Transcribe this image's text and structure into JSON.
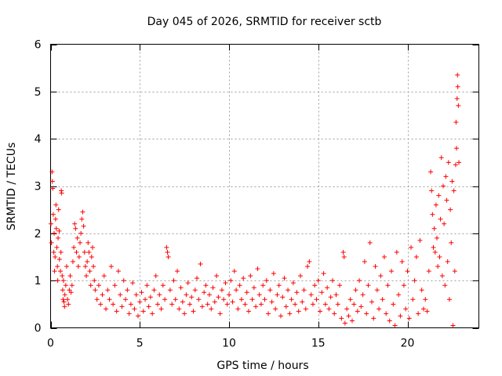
{
  "chart_data": {
    "type": "scatter",
    "title": "Day 045 of 2026, SRMTID for receiver sctb",
    "xlabel": "GPS time / hours",
    "ylabel": "SRMTID / TECUs",
    "xlim": [
      0,
      24
    ],
    "ylim": [
      0,
      6
    ],
    "x_ticks": [
      0,
      5,
      10,
      15,
      20
    ],
    "y_ticks": [
      0,
      1,
      2,
      3,
      4,
      5,
      6
    ],
    "x_tick_labels": [
      "0",
      "5",
      "10",
      "15",
      "20"
    ],
    "y_tick_labels": [
      "0",
      "1",
      "2",
      "3",
      "4",
      "5",
      "6"
    ],
    "grid": true,
    "marker": "+",
    "colors": {
      "series": "#ff0000",
      "grid": "#a0a0a0",
      "axes": "#000000"
    },
    "series": [
      {
        "name": "SRMTID",
        "points": [
          [
            0.02,
            2.2
          ],
          [
            0.05,
            1.8
          ],
          [
            0.08,
            3.3
          ],
          [
            0.1,
            3.1
          ],
          [
            0.12,
            2.95
          ],
          [
            0.15,
            2.4
          ],
          [
            0.18,
            1.6
          ],
          [
            0.2,
            2.0
          ],
          [
            0.22,
            1.2
          ],
          [
            0.25,
            1.5
          ],
          [
            0.28,
            2.3
          ],
          [
            0.3,
            2.6
          ],
          [
            0.32,
            2.1
          ],
          [
            0.35,
            1.7
          ],
          [
            0.38,
            1.3
          ],
          [
            0.4,
            1.0
          ],
          [
            0.42,
            1.9
          ],
          [
            0.45,
            2.5
          ],
          [
            0.48,
            2.05
          ],
          [
            0.5,
            1.45
          ],
          [
            0.55,
            1.2
          ],
          [
            0.58,
            1.6
          ],
          [
            0.6,
            2.9
          ],
          [
            0.62,
            2.85
          ],
          [
            0.65,
            1.1
          ],
          [
            0.68,
            0.8
          ],
          [
            0.7,
            0.6
          ],
          [
            0.72,
            1.0
          ],
          [
            0.75,
            0.55
          ],
          [
            0.78,
            0.45
          ],
          [
            0.8,
            0.7
          ],
          [
            0.85,
            0.9
          ],
          [
            0.9,
            1.3
          ],
          [
            0.95,
            0.6
          ],
          [
            1.0,
            0.5
          ],
          [
            1.05,
            0.8
          ],
          [
            1.1,
            1.1
          ],
          [
            1.15,
            0.75
          ],
          [
            1.2,
            0.9
          ],
          [
            1.25,
            1.4
          ],
          [
            1.3,
            1.7
          ],
          [
            1.35,
            2.2
          ],
          [
            1.4,
            2.1
          ],
          [
            1.45,
            1.6
          ],
          [
            1.5,
            1.9
          ],
          [
            1.55,
            1.3
          ],
          [
            1.6,
            1.5
          ],
          [
            1.65,
            1.8
          ],
          [
            1.7,
            2.0
          ],
          [
            1.75,
            2.3
          ],
          [
            1.8,
            2.45
          ],
          [
            1.85,
            2.15
          ],
          [
            1.9,
            1.6
          ],
          [
            1.95,
            1.3
          ],
          [
            2.0,
            1.1
          ],
          [
            2.05,
            1.4
          ],
          [
            2.1,
            1.8
          ],
          [
            2.15,
            1.6
          ],
          [
            2.2,
            1.2
          ],
          [
            2.25,
            0.9
          ],
          [
            2.3,
            1.5
          ],
          [
            2.35,
            1.7
          ],
          [
            2.4,
            1.3
          ],
          [
            2.45,
            1.0
          ],
          [
            2.5,
            0.8
          ],
          [
            2.6,
            0.6
          ],
          [
            2.7,
            0.9
          ],
          [
            2.8,
            0.5
          ],
          [
            2.9,
            0.7
          ],
          [
            3.0,
            1.1
          ],
          [
            3.1,
            0.4
          ],
          [
            3.2,
            0.8
          ],
          [
            3.3,
            0.6
          ],
          [
            3.4,
            1.3
          ],
          [
            3.5,
            0.5
          ],
          [
            3.6,
            0.9
          ],
          [
            3.7,
            0.35
          ],
          [
            3.8,
            1.2
          ],
          [
            3.9,
            0.7
          ],
          [
            4.0,
            0.45
          ],
          [
            4.1,
            1.0
          ],
          [
            4.2,
            0.6
          ],
          [
            4.3,
            0.8
          ],
          [
            4.4,
            0.3
          ],
          [
            4.5,
            0.5
          ],
          [
            4.6,
            0.95
          ],
          [
            4.7,
            0.4
          ],
          [
            4.8,
            0.7
          ],
          [
            4.9,
            0.25
          ],
          [
            5.0,
            0.55
          ],
          [
            5.1,
            0.75
          ],
          [
            5.2,
            0.35
          ],
          [
            5.3,
            0.6
          ],
          [
            5.4,
            0.9
          ],
          [
            5.5,
            0.45
          ],
          [
            5.6,
            0.65
          ],
          [
            5.7,
            0.3
          ],
          [
            5.8,
            0.8
          ],
          [
            5.9,
            1.1
          ],
          [
            6.0,
            0.5
          ],
          [
            6.1,
            0.7
          ],
          [
            6.2,
            0.4
          ],
          [
            6.3,
            0.9
          ],
          [
            6.4,
            0.6
          ],
          [
            6.5,
            1.7
          ],
          [
            6.55,
            1.6
          ],
          [
            6.6,
            1.5
          ],
          [
            6.7,
            0.8
          ],
          [
            6.8,
            0.5
          ],
          [
            6.9,
            1.0
          ],
          [
            7.0,
            0.6
          ],
          [
            7.1,
            1.2
          ],
          [
            7.2,
            0.4
          ],
          [
            7.3,
            0.85
          ],
          [
            7.4,
            0.55
          ],
          [
            7.5,
            0.3
          ],
          [
            7.6,
            0.7
          ],
          [
            7.7,
            0.95
          ],
          [
            7.8,
            0.5
          ],
          [
            7.9,
            0.65
          ],
          [
            8.0,
            0.35
          ],
          [
            8.1,
            0.8
          ],
          [
            8.2,
            1.05
          ],
          [
            8.3,
            0.6
          ],
          [
            8.4,
            1.35
          ],
          [
            8.5,
            0.45
          ],
          [
            8.6,
            0.75
          ],
          [
            8.7,
            0.9
          ],
          [
            8.8,
            0.5
          ],
          [
            8.9,
            0.7
          ],
          [
            9.0,
            0.4
          ],
          [
            9.1,
            0.85
          ],
          [
            9.2,
            0.55
          ],
          [
            9.3,
            1.1
          ],
          [
            9.4,
            0.65
          ],
          [
            9.5,
            0.3
          ],
          [
            9.6,
            0.8
          ],
          [
            9.7,
            0.6
          ],
          [
            9.8,
            0.95
          ],
          [
            9.9,
            0.5
          ],
          [
            10.0,
            0.7
          ],
          [
            10.1,
            1.0
          ],
          [
            10.2,
            0.55
          ],
          [
            10.3,
            1.2
          ],
          [
            10.4,
            0.8
          ],
          [
            10.5,
            0.4
          ],
          [
            10.6,
            0.9
          ],
          [
            10.7,
            0.6
          ],
          [
            10.8,
            1.05
          ],
          [
            10.9,
            0.5
          ],
          [
            11.0,
            0.75
          ],
          [
            11.1,
            0.35
          ],
          [
            11.2,
            1.1
          ],
          [
            11.3,
            0.6
          ],
          [
            11.4,
            0.85
          ],
          [
            11.5,
            0.45
          ],
          [
            11.6,
            1.25
          ],
          [
            11.7,
            0.7
          ],
          [
            11.8,
            0.5
          ],
          [
            11.9,
            0.9
          ],
          [
            12.0,
            0.6
          ],
          [
            12.1,
            1.0
          ],
          [
            12.2,
            0.3
          ],
          [
            12.3,
            0.8
          ],
          [
            12.4,
            0.55
          ],
          [
            12.5,
            1.15
          ],
          [
            12.6,
            0.4
          ],
          [
            12.7,
            0.7
          ],
          [
            12.8,
            0.9
          ],
          [
            12.9,
            0.25
          ],
          [
            13.0,
            0.65
          ],
          [
            13.1,
            1.05
          ],
          [
            13.2,
            0.45
          ],
          [
            13.3,
            0.8
          ],
          [
            13.4,
            0.3
          ],
          [
            13.5,
            0.6
          ],
          [
            13.6,
            0.95
          ],
          [
            13.7,
            0.5
          ],
          [
            13.8,
            0.75
          ],
          [
            13.9,
            0.35
          ],
          [
            14.0,
            1.1
          ],
          [
            14.1,
            0.55
          ],
          [
            14.2,
            0.8
          ],
          [
            14.3,
            0.4
          ],
          [
            14.4,
            1.3
          ],
          [
            14.5,
            1.4
          ],
          [
            14.6,
            0.7
          ],
          [
            14.7,
            0.5
          ],
          [
            14.8,
            0.9
          ],
          [
            14.9,
            0.6
          ],
          [
            15.0,
            1.0
          ],
          [
            15.1,
            0.35
          ],
          [
            15.2,
            0.75
          ],
          [
            15.3,
            1.15
          ],
          [
            15.4,
            0.5
          ],
          [
            15.5,
            0.85
          ],
          [
            15.6,
            0.4
          ],
          [
            15.7,
            0.65
          ],
          [
            15.8,
            1.0
          ],
          [
            15.9,
            0.3
          ],
          [
            16.0,
            0.7
          ],
          [
            16.1,
            0.5
          ],
          [
            16.2,
            0.9
          ],
          [
            16.3,
            0.2
          ],
          [
            16.4,
            1.6
          ],
          [
            16.45,
            1.5
          ],
          [
            16.5,
            0.1
          ],
          [
            16.6,
            0.4
          ],
          [
            16.7,
            0.25
          ],
          [
            16.8,
            0.6
          ],
          [
            16.9,
            0.15
          ],
          [
            17.0,
            0.5
          ],
          [
            17.1,
            0.8
          ],
          [
            17.2,
            0.35
          ],
          [
            17.3,
            1.0
          ],
          [
            17.4,
            0.45
          ],
          [
            17.5,
            0.7
          ],
          [
            17.6,
            1.4
          ],
          [
            17.7,
            0.3
          ],
          [
            17.8,
            0.9
          ],
          [
            17.9,
            1.8
          ],
          [
            18.0,
            0.55
          ],
          [
            18.1,
            0.2
          ],
          [
            18.2,
            1.3
          ],
          [
            18.3,
            0.8
          ],
          [
            18.4,
            0.4
          ],
          [
            18.5,
            1.1
          ],
          [
            18.6,
            0.6
          ],
          [
            18.7,
            1.5
          ],
          [
            18.8,
            0.3
          ],
          [
            18.9,
            0.9
          ],
          [
            19.0,
            0.15
          ],
          [
            19.1,
            1.2
          ],
          [
            19.2,
            0.5
          ],
          [
            19.3,
            0.05
          ],
          [
            19.4,
            1.6
          ],
          [
            19.5,
            0.7
          ],
          [
            19.6,
            0.25
          ],
          [
            19.7,
            1.4
          ],
          [
            19.8,
            0.9
          ],
          [
            19.9,
            0.4
          ],
          [
            20.0,
            1.2
          ],
          [
            20.1,
            0.2
          ],
          [
            20.2,
            1.7
          ],
          [
            20.3,
            0.6
          ],
          [
            20.4,
            1.0
          ],
          [
            20.5,
            1.5
          ],
          [
            20.6,
            0.3
          ],
          [
            20.7,
            1.85
          ],
          [
            20.8,
            0.8
          ],
          [
            20.9,
            0.4
          ],
          [
            21.0,
            0.6
          ],
          [
            21.1,
            0.35
          ],
          [
            21.2,
            1.2
          ],
          [
            21.3,
            3.3
          ],
          [
            21.35,
            2.9
          ],
          [
            21.4,
            2.4
          ],
          [
            21.45,
            1.7
          ],
          [
            21.5,
            2.1
          ],
          [
            21.55,
            1.6
          ],
          [
            21.6,
            2.6
          ],
          [
            21.65,
            1.9
          ],
          [
            21.7,
            1.3
          ],
          [
            21.75,
            2.8
          ],
          [
            21.8,
            1.5
          ],
          [
            21.85,
            2.3
          ],
          [
            21.9,
            3.6
          ],
          [
            21.95,
            1.1
          ],
          [
            22.0,
            3.0
          ],
          [
            22.05,
            2.2
          ],
          [
            22.1,
            0.9
          ],
          [
            22.15,
            3.2
          ],
          [
            22.2,
            2.7
          ],
          [
            22.25,
            1.4
          ],
          [
            22.3,
            3.5
          ],
          [
            22.35,
            0.6
          ],
          [
            22.4,
            2.5
          ],
          [
            22.45,
            1.8
          ],
          [
            22.5,
            3.1
          ],
          [
            22.55,
            0.05
          ],
          [
            22.6,
            2.9
          ],
          [
            22.65,
            1.2
          ],
          [
            22.7,
            3.45
          ],
          [
            22.72,
            4.35
          ],
          [
            22.75,
            3.8
          ],
          [
            22.78,
            4.85
          ],
          [
            22.8,
            5.35
          ],
          [
            22.82,
            5.1
          ],
          [
            22.85,
            4.7
          ],
          [
            22.88,
            3.5
          ]
        ]
      }
    ]
  }
}
